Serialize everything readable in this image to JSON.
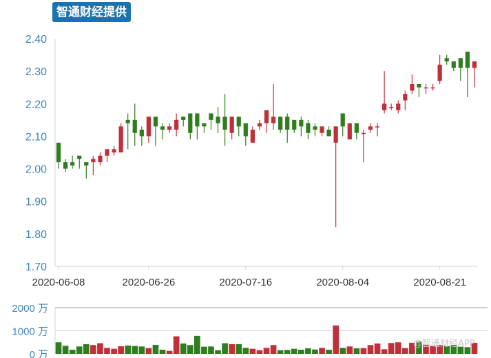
{
  "header": {
    "badge_text": "智通财经提供"
  },
  "watermark": "@智通财经APP",
  "colors": {
    "up": "#c0303a",
    "down": "#2f7d1f",
    "axis_text": "#3d85b8",
    "grid": "#cfd6dc"
  },
  "chart_data": [
    {
      "type": "candlestick",
      "title": "",
      "ylim": [
        1.7,
        2.4
      ],
      "y_ticks": [
        "2.40",
        "2.30",
        "2.20",
        "2.10",
        "2.00",
        "1.90",
        "1.80",
        "1.70"
      ],
      "x_tick_labels": [
        "2020-06-08",
        "2020-06-26",
        "2020-07-16",
        "2020-08-04",
        "2020-08-21"
      ],
      "x_tick_index": [
        0,
        13,
        27,
        41,
        55
      ],
      "candles": [
        [
          2.08,
          2.02,
          2.08,
          2.0
        ],
        [
          2.02,
          2.0,
          2.03,
          1.99
        ],
        [
          2.02,
          2.01,
          2.04,
          2.0
        ],
        [
          2.04,
          2.03,
          2.04,
          2.0
        ],
        [
          2.02,
          2.01,
          2.02,
          1.97
        ],
        [
          2.02,
          2.03,
          2.04,
          1.98
        ],
        [
          2.02,
          2.04,
          2.05,
          2.01
        ],
        [
          2.04,
          2.06,
          2.06,
          2.02
        ],
        [
          2.05,
          2.06,
          2.07,
          2.04
        ],
        [
          2.05,
          2.13,
          2.14,
          2.05
        ],
        [
          2.15,
          2.14,
          2.17,
          2.06
        ],
        [
          2.15,
          2.11,
          2.2,
          2.07
        ],
        [
          2.12,
          2.1,
          2.13,
          2.07
        ],
        [
          2.1,
          2.16,
          2.16,
          2.08
        ],
        [
          2.16,
          2.13,
          2.16,
          2.07
        ],
        [
          2.13,
          2.12,
          2.14,
          2.09
        ],
        [
          2.12,
          2.13,
          2.14,
          2.11
        ],
        [
          2.12,
          2.15,
          2.17,
          2.1
        ],
        [
          2.16,
          2.15,
          2.16,
          2.13
        ],
        [
          2.17,
          2.11,
          2.17,
          2.09
        ],
        [
          2.17,
          2.13,
          2.17,
          2.09
        ],
        [
          2.14,
          2.13,
          2.14,
          2.11
        ],
        [
          2.17,
          2.15,
          2.17,
          2.12
        ],
        [
          2.16,
          2.14,
          2.19,
          2.11
        ],
        [
          2.16,
          2.12,
          2.23,
          2.07
        ],
        [
          2.11,
          2.16,
          2.16,
          2.09
        ],
        [
          2.16,
          2.13,
          2.16,
          2.1
        ],
        [
          2.14,
          2.1,
          2.14,
          2.07
        ],
        [
          2.08,
          2.12,
          2.13,
          2.08
        ],
        [
          2.13,
          2.14,
          2.15,
          2.12
        ],
        [
          2.14,
          2.18,
          2.18,
          2.11
        ],
        [
          2.14,
          2.16,
          2.26,
          2.12
        ],
        [
          2.16,
          2.12,
          2.16,
          2.11
        ],
        [
          2.16,
          2.12,
          2.17,
          2.08
        ],
        [
          2.15,
          2.12,
          2.15,
          2.11
        ],
        [
          2.15,
          2.13,
          2.16,
          2.1
        ],
        [
          2.14,
          2.11,
          2.15,
          2.09
        ],
        [
          2.13,
          2.12,
          2.14,
          2.1
        ],
        [
          2.11,
          2.13,
          2.13,
          2.1
        ],
        [
          2.12,
          2.1,
          2.13,
          2.1
        ],
        [
          2.08,
          2.13,
          2.13,
          1.82
        ],
        [
          2.17,
          2.13,
          2.17,
          2.1
        ],
        [
          2.09,
          2.14,
          2.14,
          2.09
        ],
        [
          2.14,
          2.11,
          2.14,
          2.09
        ],
        [
          2.11,
          2.11,
          2.12,
          2.02
        ],
        [
          2.12,
          2.13,
          2.14,
          2.11
        ],
        [
          2.13,
          2.13,
          2.14,
          2.1
        ],
        [
          2.18,
          2.2,
          2.3,
          2.17
        ],
        [
          2.19,
          2.19,
          2.2,
          2.18
        ],
        [
          2.18,
          2.2,
          2.21,
          2.17
        ],
        [
          2.21,
          2.23,
          2.24,
          2.18
        ],
        [
          2.24,
          2.26,
          2.29,
          2.23
        ],
        [
          2.26,
          2.25,
          2.26,
          2.22
        ],
        [
          2.25,
          2.25,
          2.26,
          2.23
        ],
        [
          2.25,
          2.25,
          2.26,
          2.24
        ],
        [
          2.27,
          2.32,
          2.35,
          2.26
        ],
        [
          2.34,
          2.33,
          2.35,
          2.32
        ],
        [
          2.33,
          2.31,
          2.33,
          2.3
        ],
        [
          2.34,
          2.31,
          2.34,
          2.27
        ],
        [
          2.36,
          2.31,
          2.36,
          2.22
        ],
        [
          2.31,
          2.33,
          2.33,
          2.25
        ]
      ]
    },
    {
      "type": "bar",
      "title": "",
      "ylabel_unit": "万",
      "ylim": [
        0,
        2000
      ],
      "y_tick_labels": [
        "2000 万",
        "1000 万",
        "0 万"
      ],
      "y_tick_values": [
        2000,
        1000,
        0
      ],
      "values": [
        500,
        350,
        180,
        320,
        420,
        380,
        460,
        260,
        220,
        330,
        360,
        340,
        320,
        250,
        390,
        180,
        130,
        760,
        450,
        380,
        780,
        310,
        320,
        160,
        460,
        420,
        420,
        260,
        220,
        160,
        260,
        380,
        160,
        170,
        220,
        180,
        240,
        190,
        260,
        180,
        1230,
        260,
        320,
        240,
        250,
        380,
        450,
        200,
        470,
        500,
        250,
        480,
        530,
        400,
        350,
        380,
        340,
        390,
        310,
        290,
        480
      ]
    }
  ]
}
